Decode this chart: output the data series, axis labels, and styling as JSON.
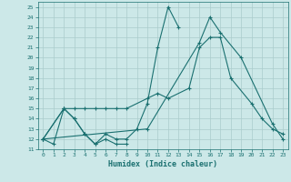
{
  "title": "",
  "xlabel": "Humidex (Indice chaleur)",
  "bg_color": "#cce8e8",
  "line_color": "#1a7070",
  "grid_color": "#aacccc",
  "xlim": [
    -0.5,
    23.5
  ],
  "ylim": [
    11,
    25.5
  ],
  "xticks": [
    0,
    1,
    2,
    3,
    4,
    5,
    6,
    7,
    8,
    9,
    10,
    11,
    12,
    13,
    14,
    15,
    16,
    17,
    18,
    19,
    20,
    21,
    22,
    23
  ],
  "yticks": [
    11,
    12,
    13,
    14,
    15,
    16,
    17,
    18,
    19,
    20,
    21,
    22,
    23,
    24,
    25
  ],
  "series": [
    [
      0,
      12,
      1,
      11.5,
      2,
      15,
      3,
      14,
      4,
      12.5,
      5,
      11.5,
      6,
      12,
      7,
      11.5,
      8,
      11.5
    ],
    [
      0,
      12,
      2,
      15,
      3,
      14,
      4,
      12.5,
      5,
      11.5,
      6,
      12.5,
      7,
      12,
      8,
      12,
      9,
      13,
      10,
      15.5,
      11,
      21,
      12,
      25,
      13,
      23
    ],
    [
      0,
      12,
      2,
      15,
      3,
      15,
      4,
      15,
      5,
      15,
      6,
      15,
      7,
      15,
      8,
      15,
      10,
      16,
      11,
      16.5,
      12,
      16,
      14,
      17,
      15,
      21,
      16,
      22,
      17,
      22,
      18,
      18,
      20,
      15.5,
      21,
      14,
      22,
      13,
      23,
      12.5
    ],
    [
      0,
      12,
      10,
      13,
      15,
      21.5,
      16,
      24,
      17,
      22.5,
      19,
      20,
      22,
      13.5,
      23,
      12
    ]
  ]
}
